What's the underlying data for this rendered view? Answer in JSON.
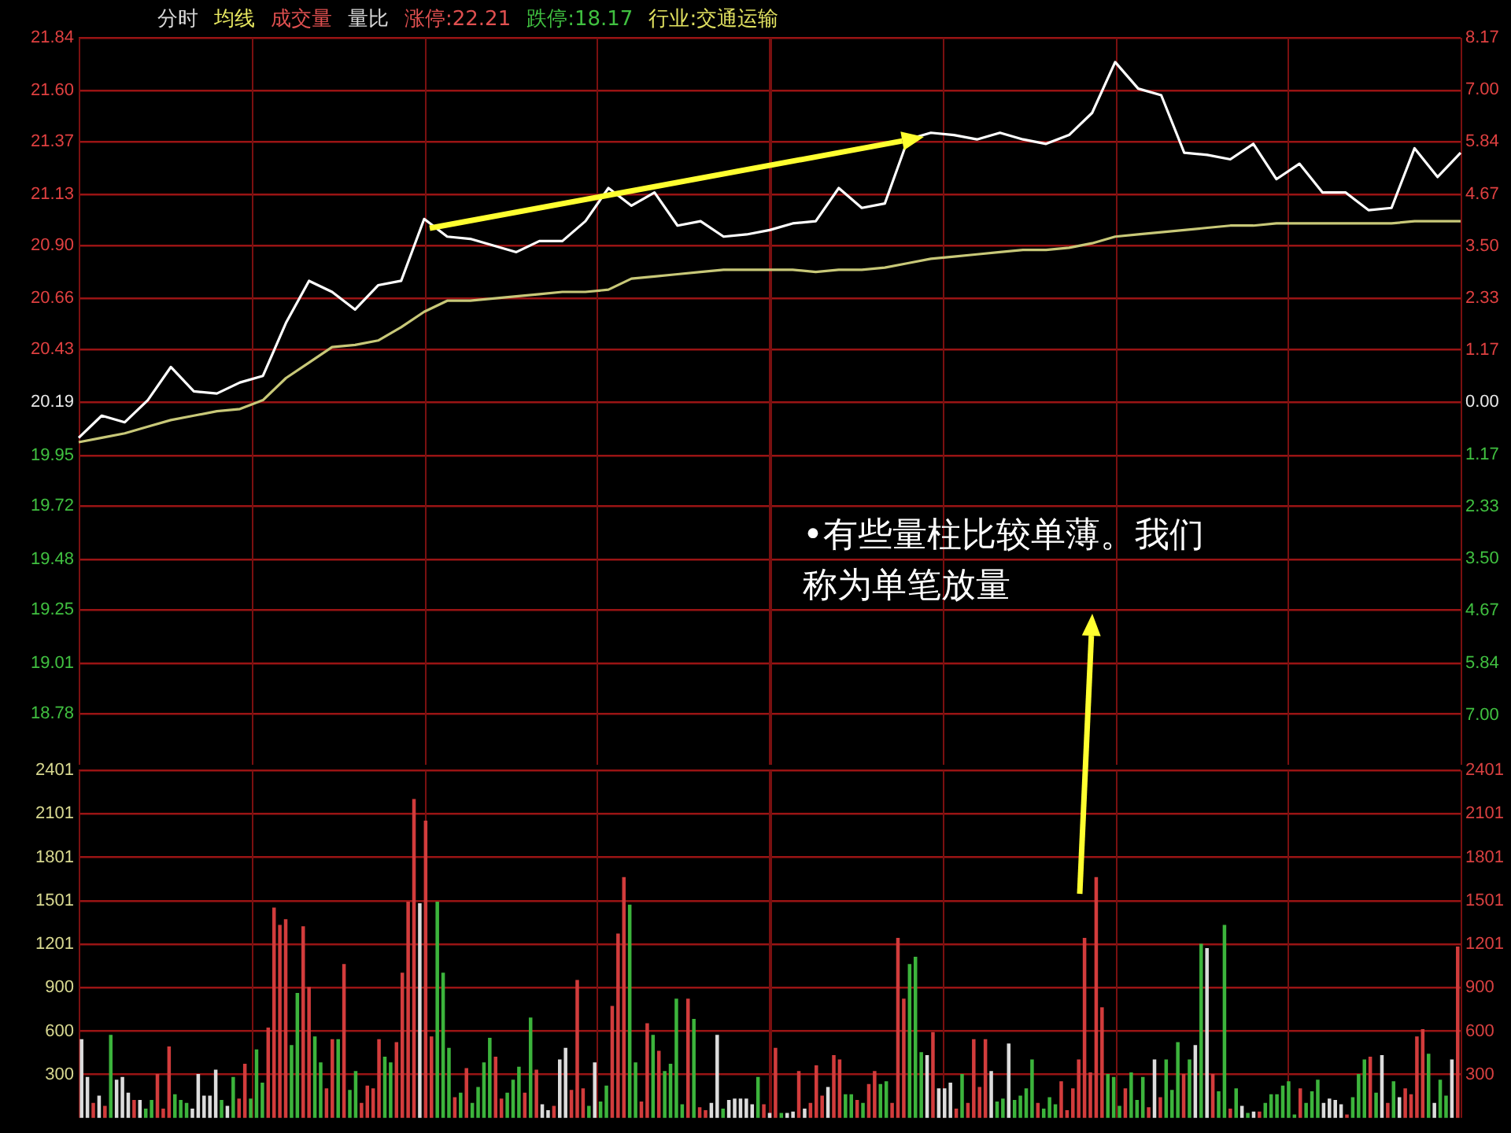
{
  "chart_data": [
    {
      "type": "line",
      "annotations": [
        "分时",
        "均线",
        "成交量",
        "量比",
        "涨停:22.21",
        "跌停:18.17",
        "行业:交通运输"
      ],
      "categories": [
        null,
        null,
        null,
        null,
        null,
        null,
        null,
        null,
        null,
        null,
        null,
        null,
        null,
        null,
        null,
        null,
        null,
        null,
        null,
        null,
        null,
        null,
        null,
        null,
        null,
        null,
        null,
        null,
        null,
        null,
        null,
        null,
        null,
        null,
        null,
        null,
        null,
        null,
        null,
        null,
        null,
        null,
        null,
        null,
        null,
        null,
        null,
        null,
        null,
        null,
        null,
        null,
        null,
        null,
        null,
        null,
        null,
        null,
        null,
        null,
        null
      ],
      "series": [
        {
          "color": "#ffffff",
          "values": [
            20.03,
            20.13,
            20.1,
            20.2,
            20.35,
            20.24,
            20.23,
            20.28,
            20.31,
            20.55,
            20.74,
            20.69,
            20.61,
            20.72,
            20.74,
            21.02,
            20.94,
            20.93,
            20.9,
            20.87,
            20.92,
            20.92,
            21.01,
            21.16,
            21.08,
            21.14,
            20.99,
            21.01,
            20.94,
            20.95,
            20.97,
            21.0,
            21.01,
            21.16,
            21.07,
            21.09,
            21.38,
            21.41,
            21.4,
            21.38,
            21.41,
            21.38,
            21.36,
            21.4,
            21.5,
            21.73,
            21.61,
            21.58,
            21.32,
            21.31,
            21.29,
            21.36,
            21.2,
            21.27,
            21.14,
            21.14,
            21.06,
            21.07,
            21.34,
            21.21,
            21.32
          ]
        },
        {
          "color": "#c8c878",
          "values": [
            20.01,
            20.03,
            20.05,
            20.08,
            20.11,
            20.13,
            20.15,
            20.16,
            20.2,
            20.3,
            20.37,
            20.44,
            20.45,
            20.47,
            20.53,
            20.6,
            20.65,
            20.65,
            20.66,
            20.67,
            20.68,
            20.69,
            20.69,
            20.7,
            20.75,
            20.76,
            20.77,
            20.78,
            20.79,
            20.79,
            20.79,
            20.79,
            20.78,
            20.79,
            20.79,
            20.8,
            20.82,
            20.84,
            20.85,
            20.86,
            20.87,
            20.88,
            20.88,
            20.89,
            20.91,
            20.94,
            20.95,
            20.96,
            20.97,
            20.98,
            20.99,
            20.99,
            21.0,
            21.0,
            21.0,
            21.0,
            21.0,
            21.0,
            21.01,
            21.01,
            21.01
          ]
        }
      ],
      "ylim": [
        18.55,
        21.84
      ],
      "yticks": [
        21.84,
        {
          "value": 21.6,
          "label": "21.60"
        },
        21.37,
        21.13,
        {
          "value": 20.9,
          "label": "20.90"
        },
        20.66,
        20.43,
        20.19,
        19.95,
        19.72,
        19.48,
        19.25,
        19.01,
        18.78
      ],
      "y2lim": [
        -8.12,
        8.17
      ],
      "y2ticks": [
        8.17,
        {
          "value": 7,
          "label": "7.00"
        },
        5.84,
        4.67,
        {
          "value": 3.5,
          "label": "3.50"
        },
        2.33,
        1.17,
        {
          "value": 0,
          "label": "0.00"
        },
        {
          "value": -1.17,
          "label": "1.17"
        },
        {
          "value": -2.33,
          "label": "2.33"
        },
        {
          "value": -3.5,
          "label": "3.50"
        },
        {
          "value": -4.67,
          "label": "4.67"
        },
        {
          "value": -5.84,
          "label": "5.84"
        },
        {
          "value": -7,
          "label": "7.00"
        }
      ],
      "tick_labels": "y",
      "grid": true,
      "legend": false,
      "marker": "none",
      "line_style": "solid"
    },
    {
      "type": "bar",
      "annotations": [
        "•有些量柱比较单薄。我们称为单笔放量"
      ],
      "categories": [
        null,
        null,
        null,
        null,
        null,
        null,
        null,
        null,
        null,
        null,
        null,
        null,
        null,
        null,
        null,
        null,
        null,
        null,
        null,
        null,
        null,
        null,
        null,
        null,
        null,
        null,
        null,
        null,
        null,
        null,
        null,
        null,
        null,
        null,
        null,
        null,
        null,
        null,
        null,
        null,
        null,
        null,
        null,
        null,
        null,
        null,
        null,
        null,
        null,
        null,
        null,
        null,
        null,
        null,
        null,
        null,
        null,
        null,
        null,
        null,
        null,
        null,
        null,
        null,
        null,
        null,
        null,
        null,
        null,
        null,
        null,
        null,
        null,
        null,
        null,
        null,
        null,
        null,
        null,
        null,
        null,
        null,
        null,
        null,
        null,
        null,
        null,
        null,
        null,
        null,
        null,
        null,
        null,
        null,
        null,
        null,
        null,
        null,
        null,
        null,
        null,
        null,
        null,
        null,
        null,
        null,
        null,
        null,
        null,
        null,
        null,
        null,
        null,
        null,
        null,
        null,
        null,
        null,
        null,
        null,
        null,
        null,
        null,
        null,
        null,
        null,
        null,
        null,
        null,
        null,
        null,
        null,
        null,
        null,
        null,
        null,
        null,
        null,
        null,
        null,
        null,
        null,
        null,
        null,
        null,
        null,
        null,
        null,
        null,
        null,
        null,
        null,
        null,
        null,
        null,
        null,
        null,
        null,
        null,
        null,
        null,
        null,
        null,
        null,
        null,
        null,
        null,
        null,
        null,
        null,
        null,
        null,
        null,
        null,
        null,
        null,
        null,
        null,
        null,
        null,
        null,
        null,
        null,
        null,
        null,
        null,
        null,
        null,
        null,
        null,
        null,
        null,
        null,
        null,
        null,
        null,
        null,
        null,
        null,
        null,
        null,
        null,
        null,
        null,
        null,
        null,
        null,
        null,
        null,
        null,
        null,
        null,
        null,
        null,
        null,
        null,
        null,
        null,
        null,
        null,
        null,
        null,
        null,
        null,
        null,
        null,
        null,
        null,
        null,
        null,
        null,
        null,
        null,
        null,
        null,
        null,
        null
      ],
      "values": [
        540,
        280,
        100,
        150,
        80,
        570,
        260,
        280,
        170,
        120,
        120,
        60,
        120,
        300,
        60,
        490,
        160,
        120,
        100,
        60,
        300,
        150,
        150,
        330,
        120,
        80,
        280,
        130,
        370,
        130,
        470,
        240,
        620,
        1450,
        1330,
        1370,
        500,
        860,
        1320,
        900,
        560,
        380,
        200,
        540,
        540,
        1060,
        190,
        320,
        100,
        220,
        200,
        540,
        420,
        380,
        520,
        1000,
        1490,
        2200,
        1480,
        2050,
        560,
        1490,
        1000,
        480,
        140,
        170,
        340,
        100,
        210,
        380,
        550,
        420,
        130,
        170,
        260,
        350,
        170,
        690,
        330,
        90,
        50,
        80,
        400,
        480,
        190,
        950,
        200,
        80,
        380,
        110,
        220,
        770,
        1270,
        1660,
        1470,
        380,
        110,
        650,
        570,
        460,
        320,
        370,
        820,
        90,
        820,
        680,
        70,
        50,
        100,
        570,
        60,
        120,
        130,
        130,
        130,
        90,
        280,
        90,
        30,
        480,
        30,
        30,
        40,
        320,
        60,
        100,
        360,
        150,
        210,
        430,
        400,
        160,
        160,
        120,
        100,
        230,
        320,
        230,
        250,
        100,
        1240,
        820,
        1060,
        1110,
        450,
        430,
        590,
        200,
        200,
        240,
        60,
        300,
        100,
        540,
        210,
        540,
        320,
        110,
        130,
        510,
        120,
        150,
        200,
        400,
        100,
        60,
        140,
        90,
        250,
        50,
        200,
        400,
        1240,
        310,
        1660,
        760,
        300,
        280,
        80,
        200,
        310,
        120,
        280,
        70,
        400,
        140,
        400,
        190,
        520,
        300,
        400,
        500,
        1200,
        1170,
        300,
        180,
        1330,
        60,
        200,
        80,
        30,
        40,
        40,
        100,
        160,
        160,
        220,
        250,
        20,
        200,
        100,
        180,
        260,
        100,
        130,
        120,
        90,
        20,
        140,
        300,
        400,
        420,
        170,
        430,
        100,
        250,
        140,
        200,
        160,
        560,
        610,
        440,
        100,
        260,
        150,
        400,
        1180
      ],
      "colors": [
        "#dcdcdc",
        "#dcdcdc",
        "#d23c3c",
        "#dcdcdc",
        "#d23c3c",
        "#3cb43c",
        "#dcdcdc",
        "#dcdcdc",
        "#dcdcdc",
        "#d23c3c",
        "#dcdcdc",
        "#3cb43c",
        "#3cb43c",
        "#d23c3c",
        "#d23c3c",
        "#d23c3c",
        "#3cb43c",
        "#3cb43c",
        "#3cb43c",
        "#dcdcdc",
        "#dcdcdc",
        "#dcdcdc",
        "#dcdcdc",
        "#dcdcdc",
        "#3cb43c",
        "#dcdcdc",
        "#3cb43c",
        "#d23c3c",
        "#d23c3c",
        "#3cb43c",
        "#3cb43c",
        "#3cb43c",
        "#d23c3c",
        "#d23c3c",
        "#d23c3c",
        "#d23c3c",
        "#3cb43c",
        "#3cb43c",
        "#d23c3c",
        "#d23c3c",
        "#3cb43c",
        "#3cb43c",
        "#d23c3c",
        "#d23c3c",
        "#3cb43c",
        "#d23c3c",
        "#3cb43c",
        "#3cb43c",
        "#d23c3c",
        "#d23c3c",
        "#d23c3c",
        "#d23c3c",
        "#3cb43c",
        "#3cb43c",
        "#d23c3c",
        "#d23c3c",
        "#d23c3c",
        "#d23c3c",
        "#dcdcdc",
        "#d23c3c",
        "#d23c3c",
        "#3cb43c",
        "#3cb43c",
        "#3cb43c",
        "#d23c3c",
        "#3cb43c",
        "#d23c3c",
        "#3cb43c",
        "#3cb43c",
        "#3cb43c",
        "#3cb43c",
        "#d23c3c",
        "#d23c3c",
        "#3cb43c",
        "#3cb43c",
        "#3cb43c",
        "#d23c3c",
        "#3cb43c",
        "#d23c3c",
        "#dcdcdc",
        "#dcdcdc",
        "#d23c3c",
        "#dcdcdc",
        "#dcdcdc",
        "#d23c3c",
        "#d23c3c",
        "#d23c3c",
        "#3cb43c",
        "#dcdcdc",
        "#3cb43c",
        "#3cb43c",
        "#d23c3c",
        "#d23c3c",
        "#d23c3c",
        "#3cb43c",
        "#3cb43c",
        "#d23c3c",
        "#d23c3c",
        "#3cb43c",
        "#d23c3c",
        "#3cb43c",
        "#3cb43c",
        "#3cb43c",
        "#3cb43c",
        "#d23c3c",
        "#3cb43c",
        "#d23c3c",
        "#d23c3c",
        "#dcdcdc",
        "#dcdcdc",
        "#3cb43c",
        "#dcdcdc",
        "#dcdcdc",
        "#dcdcdc",
        "#dcdcdc",
        "#dcdcdc",
        "#3cb43c",
        "#d23c3c",
        "#dcdcdc",
        "#d23c3c",
        "#3cb43c",
        "#dcdcdc",
        "#dcdcdc",
        "#d23c3c",
        "#dcdcdc",
        "#d23c3c",
        "#d23c3c",
        "#d23c3c",
        "#dcdcdc",
        "#d23c3c",
        "#d23c3c",
        "#3cb43c",
        "#3cb43c",
        "#d23c3c",
        "#3cb43c",
        "#d23c3c",
        "#d23c3c",
        "#3cb43c",
        "#3cb43c",
        "#d23c3c",
        "#d23c3c",
        "#d23c3c",
        "#3cb43c",
        "#3cb43c",
        "#3cb43c",
        "#dcdcdc",
        "#d23c3c",
        "#dcdcdc",
        "#dcdcdc",
        "#dcdcdc",
        "#d23c3c",
        "#3cb43c",
        "#d23c3c",
        "#d23c3c",
        "#d23c3c",
        "#d23c3c",
        "#dcdcdc",
        "#3cb43c",
        "#3cb43c",
        "#dcdcdc",
        "#3cb43c",
        "#3cb43c",
        "#3cb43c",
        "#3cb43c",
        "#d23c3c",
        "#3cb43c",
        "#3cb43c",
        "#3cb43c",
        "#d23c3c",
        "#d23c3c",
        "#d23c3c",
        "#d23c3c",
        "#d23c3c",
        "#d23c3c",
        "#d23c3c",
        "#d23c3c",
        "#3cb43c",
        "#3cb43c",
        "#3cb43c",
        "#d23c3c",
        "#3cb43c",
        "#3cb43c",
        "#3cb43c",
        "#d23c3c",
        "#dcdcdc",
        "#d23c3c",
        "#3cb43c",
        "#3cb43c",
        "#3cb43c",
        "#d23c3c",
        "#3cb43c",
        "#dcdcdc",
        "#3cb43c",
        "#dcdcdc",
        "#d23c3c",
        "#3cb43c",
        "#3cb43c",
        "#d23c3c",
        "#3cb43c",
        "#dcdcdc",
        "#3cb43c",
        "#dcdcdc",
        "#d23c3c",
        "#3cb43c",
        "#3cb43c",
        "#3cb43c",
        "#3cb43c",
        "#3cb43c",
        "#3cb43c",
        "#d23c3c",
        "#3cb43c",
        "#3cb43c",
        "#3cb43c",
        "#dcdcdc",
        "#dcdcdc",
        "#dcdcdc",
        "#dcdcdc",
        "#d23c3c",
        "#3cb43c",
        "#3cb43c",
        "#3cb43c",
        "#d23c3c",
        "#3cb43c",
        "#dcdcdc",
        "#d23c3c",
        "#3cb43c",
        "#dcdcdc",
        "#d23c3c",
        "#d23c3c",
        "#d23c3c",
        "#d23c3c",
        "#3cb43c",
        "#dcdcdc",
        "#3cb43c",
        "#3cb43c",
        "#dcdcdc",
        "#d23c3c"
      ],
      "ylim": [
        0,
        2401
      ],
      "yticks": [
        300,
        600,
        900,
        1201,
        1501,
        1801,
        2101,
        2401
      ],
      "y2lim": [
        0,
        2401
      ],
      "y2ticks": [
        300,
        600,
        900,
        1201,
        1501,
        1801,
        2101,
        2401
      ],
      "tick_labels": "y",
      "grid": true,
      "legend": false
    }
  ]
}
